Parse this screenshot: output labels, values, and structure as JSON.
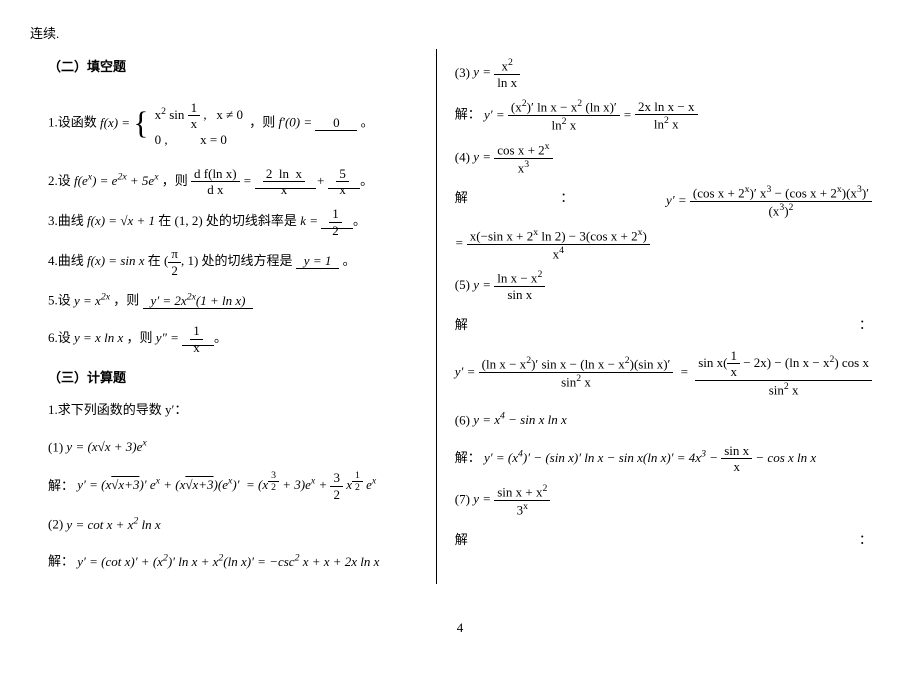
{
  "top_fragment": "连续.",
  "section2_title": "（二）填空题",
  "section3_title": "（三）计算题",
  "calc_intro": "1.求下列函数的导数 y′：",
  "pagenum": "4",
  "left": {
    "p1_pre": "1.设函数 ",
    "p1_func": "f(x) = { x² sin(1/x), x≠0 ; 0, x=0 }",
    "p1_mid": "，则 ",
    "p1_q": "f′(0) = ",
    "p1_ans": "0",
    "p1_end": "。",
    "p2_pre": "2.设 ",
    "p2_given": "f(eˣ) = e²ˣ + 5eˣ",
    "p2_mid": "，则 ",
    "p2_lhs": "d f(ln x)/dx = ",
    "p2_ans": "(2 ln x)/x + 5/x",
    "p2_end": "。",
    "p3_pre": "3.曲线 ",
    "p3_f": "f(x) = √x + 1",
    "p3_mid": " 在 (1, 2) 处的切线斜率是 ",
    "p3_lhs": "k = ",
    "p3_ans": "1/2",
    "p3_end": "。",
    "p4_pre": "4.曲线 ",
    "p4_f": "f(x) = sin x",
    "p4_mid": " 在 (π/2, 1) 处的切线方程是 ",
    "p4_ans": "y = 1",
    "p4_end": "。",
    "p5_pre": "5.设 ",
    "p5_y": "y = x²ˣ",
    "p5_mid": "，则 ",
    "p5_ans": "y′ = 2x²ˣ(1 + ln x)",
    "p6_pre": "6.设 ",
    "p6_y": "y = x ln x",
    "p6_mid": "，则 ",
    "p6_lhs": "y″ = ",
    "p6_ans": "1/x",
    "p6_end": "。",
    "c1_label": "(1) ",
    "c1_y": "y = (x√x + 3)eˣ",
    "c1_sol_pre": "解：",
    "c1_sol": "y′ = (x√x+3)′ eˣ + (x√x+3)(eˣ)′  = (x^(3/2)+3)eˣ + (3/2)x^(1/2)eˣ",
    "c2_label": "(2) ",
    "c2_y": "y = cot x + x² ln x",
    "c2_sol_pre": "解：",
    "c2_sol": "y′ = (cot x)′ + (x²)′ ln x + x²(ln x)′ = −csc² x + x + 2x ln x"
  },
  "right": {
    "c3_label": "(3) ",
    "c3_y": "y = x² / ln x",
    "c3_sol_pre": "解：",
    "c3_sol": "y′ = [(x²)′ ln x − x² (ln x)′] / ln² x = (2x ln x − x) / ln² x",
    "c4_label": "(4) ",
    "c4_y": "y = (cos x + 2ˣ) / x³",
    "c4_sol_pre": "解",
    "c4_sol_colon": "：",
    "c4_sol1": "y′ = [(cos x + 2ˣ)′ x³ − (cos x + 2ˣ)(x³)′] / (x³)²",
    "c4_sol2": "= x(−sin x + 2ˣ ln 2) − 3(cos x + 2ˣ) / x⁴",
    "c5_label": "(5) ",
    "c5_y": "y = (ln x − x²) / sin x",
    "c5_sol_pre": "解",
    "c5_sol_colon": "：",
    "c5_sol": "y′ = [(ln x − x²)′ sin x − (ln x − x²)(sin x)′] / sin² x = [sin x(1/x − 2x) − (ln x − x²) cos x] / sin² x",
    "c6_label": "(6) ",
    "c6_y": "y = x⁴ − sin x ln x",
    "c6_sol_pre": "解：",
    "c6_sol": "y′ = (x⁴)′ − (sin x)′ ln x − sin x(ln x)′ = 4x³ − (sin x)/x − cos x ln x",
    "c7_label": "(7) ",
    "c7_y": "y = (sin x + x²) / 3ˣ",
    "c7_sol_pre": "解",
    "c7_sol_colon": "："
  }
}
